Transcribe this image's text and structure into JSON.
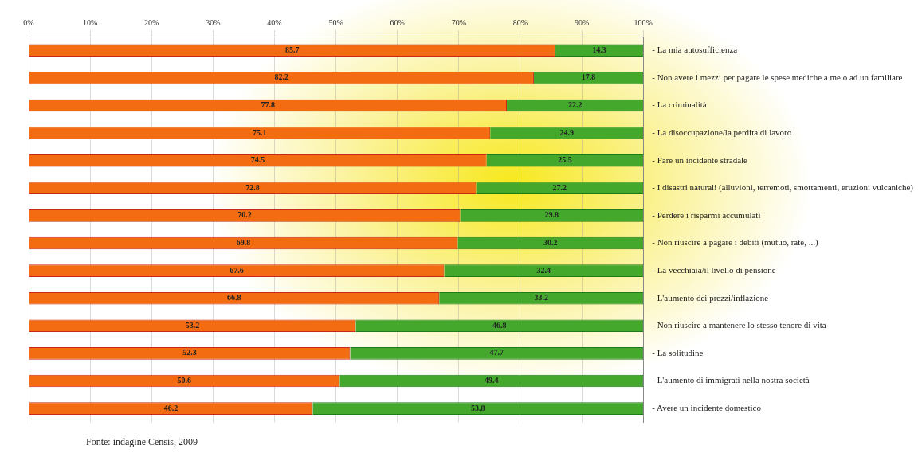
{
  "chart_data": {
    "type": "bar",
    "orientation": "horizontal",
    "stacked": true,
    "data_labels": true,
    "grid": "x",
    "legend": false,
    "categories": [
      "- La mia autosufficienza",
      "- Non avere i mezzi per pagare le spese mediche a me o ad un familiare",
      "- La criminalità",
      "- La disoccupazione/la perdita di lavoro",
      "- Fare un incidente stradale",
      "- I disastri naturali (alluvioni, terremoti, smottamenti, eruzioni vulcaniche)",
      "- Perdere i risparmi accumulati",
      "- Non riuscire a pagare i debiti (mutuo, rate, ...)",
      "- La vecchiaia/il livello di pensione",
      "- L'aumento dei prezzi/inflazione",
      "- Non riuscire a mantenere lo stesso tenore di vita",
      "- La solitudine",
      "- L'aumento di immigrati nella nostra società",
      "- Avere un incidente domestico"
    ],
    "series": [
      {
        "color": "#f36c12",
        "values": [
          85.7,
          82.2,
          77.8,
          75.1,
          74.5,
          72.8,
          70.2,
          69.8,
          67.6,
          66.8,
          53.2,
          52.3,
          50.6,
          46.2
        ]
      },
      {
        "color": "#43a82c",
        "values": [
          14.3,
          17.8,
          22.2,
          24.9,
          25.5,
          27.2,
          29.8,
          30.2,
          32.4,
          33.2,
          46.8,
          47.7,
          49.4,
          53.8
        ]
      }
    ],
    "xlim": [
      0,
      100
    ],
    "xticks": [
      {
        "value": 0,
        "label": "0%"
      },
      {
        "value": 10,
        "label": "10%"
      },
      {
        "value": 20,
        "label": "20%"
      },
      {
        "value": 30,
        "label": "30%"
      },
      {
        "value": 40,
        "label": "40%"
      },
      {
        "value": 50,
        "label": "50%"
      },
      {
        "value": 60,
        "label": "60%"
      },
      {
        "value": 70,
        "label": "70%"
      },
      {
        "value": 80,
        "label": "80%"
      },
      {
        "value": 90,
        "label": "90%"
      },
      {
        "value": 100,
        "label": "100%"
      }
    ],
    "annotations": [
      "Fonte: indagine Censis, 2009"
    ]
  }
}
